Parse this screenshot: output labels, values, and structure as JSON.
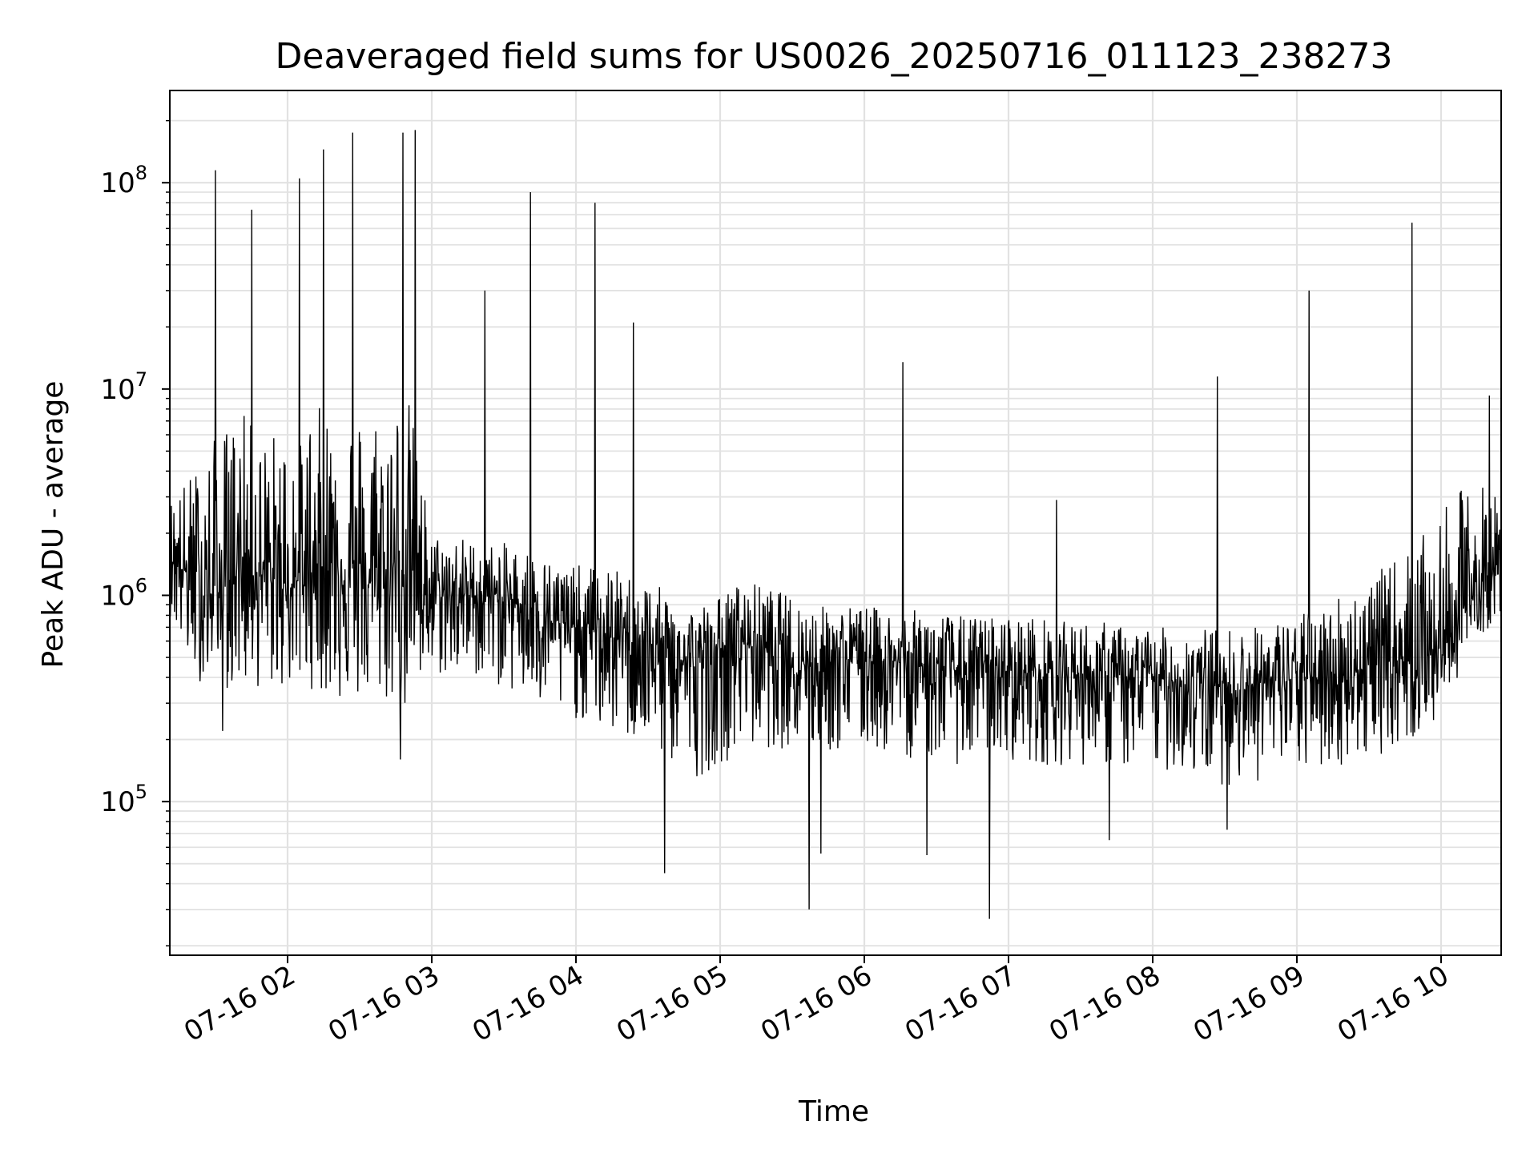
{
  "chart_data": {
    "type": "line",
    "title": "Deaveraged field sums for US0026_20250716_011123_238273",
    "xlabel": "Time",
    "ylabel": "Peak ADU - average",
    "y_scale": "log",
    "ylim": [
      18000,
      280000000
    ],
    "xlim": [
      "2025-07-16 01:11",
      "2025-07-16 10:25"
    ],
    "grid": true,
    "x_tick_labels": [
      "07-16 02",
      "07-16 03",
      "07-16 04",
      "07-16 05",
      "07-16 06",
      "07-16 07",
      "07-16 08",
      "07-16 09",
      "07-16 10"
    ],
    "x_ticks": [
      "2025-07-16 02:00",
      "2025-07-16 03:00",
      "2025-07-16 04:00",
      "2025-07-16 05:00",
      "2025-07-16 06:00",
      "2025-07-16 07:00",
      "2025-07-16 08:00",
      "2025-07-16 09:00",
      "2025-07-16 10:00"
    ],
    "y_ticks": [
      100000,
      1000000,
      10000000,
      100000000
    ],
    "y_tick_labels": [
      {
        "base": "10",
        "exp": "5"
      },
      {
        "base": "10",
        "exp": "6"
      },
      {
        "base": "10",
        "exp": "7"
      },
      {
        "base": "10",
        "exp": "8"
      }
    ],
    "line_color": "#000000",
    "series": [
      {
        "x": [
          "2025-07-16 01:11",
          "2025-07-16 01:20",
          "2025-07-16 01:30",
          "2025-07-16 01:40",
          "2025-07-16 01:50",
          "2025-07-16 02:00",
          "2025-07-16 02:10",
          "2025-07-16 02:20",
          "2025-07-16 02:30",
          "2025-07-16 02:40",
          "2025-07-16 02:50",
          "2025-07-16 03:00",
          "2025-07-16 03:10",
          "2025-07-16 03:20",
          "2025-07-16 03:30",
          "2025-07-16 03:40",
          "2025-07-16 03:50",
          "2025-07-16 04:00",
          "2025-07-16 04:10",
          "2025-07-16 04:20",
          "2025-07-16 04:30",
          "2025-07-16 04:40",
          "2025-07-16 04:50",
          "2025-07-16 05:00",
          "2025-07-16 05:10",
          "2025-07-16 05:20",
          "2025-07-16 05:30",
          "2025-07-16 05:40",
          "2025-07-16 05:50",
          "2025-07-16 06:00",
          "2025-07-16 06:10",
          "2025-07-16 06:20",
          "2025-07-16 06:30",
          "2025-07-16 06:40",
          "2025-07-16 06:50",
          "2025-07-16 07:00",
          "2025-07-16 07:10",
          "2025-07-16 07:20",
          "2025-07-16 07:30",
          "2025-07-16 07:40",
          "2025-07-16 07:50",
          "2025-07-16 08:00",
          "2025-07-16 08:10",
          "2025-07-16 08:20",
          "2025-07-16 08:30",
          "2025-07-16 08:40",
          "2025-07-16 08:50",
          "2025-07-16 09:00",
          "2025-07-16 09:10",
          "2025-07-16 09:20",
          "2025-07-16 09:30",
          "2025-07-16 09:40",
          "2025-07-16 09:50",
          "2025-07-16 10:00",
          "2025-07-16 10:10",
          "2025-07-16 10:20",
          "2025-07-16 10:25"
        ],
        "y": [
          1600000,
          1200000,
          900000,
          1500000,
          1200000,
          1100000,
          1300000,
          1500000,
          1100000,
          1200000,
          1400000,
          1000000,
          1000000,
          1000000,
          950000,
          900000,
          750000,
          700000,
          650000,
          600000,
          550000,
          500000,
          450000,
          550000,
          600000,
          550000,
          500000,
          480000,
          500000,
          500000,
          480000,
          460000,
          450000,
          430000,
          420000,
          430000,
          420000,
          410000,
          420000,
          400000,
          390000,
          400000,
          380000,
          370000,
          360000,
          370000,
          380000,
          390000,
          400000,
          420000,
          450000,
          480000,
          500000,
          550000,
          900000,
          1200000,
          1300000
        ],
        "noise_low": [
          800000,
          400000,
          350000,
          350000,
          350000,
          350000,
          350000,
          300000,
          300000,
          300000,
          250000,
          400000,
          400000,
          400000,
          350000,
          300000,
          250000,
          250000,
          220000,
          200000,
          180000,
          150000,
          130000,
          150000,
          180000,
          180000,
          180000,
          170000,
          170000,
          180000,
          170000,
          160000,
          160000,
          150000,
          150000,
          160000,
          150000,
          150000,
          150000,
          150000,
          140000,
          140000,
          140000,
          130000,
          120000,
          120000,
          130000,
          140000,
          140000,
          150000,
          160000,
          180000,
          200000,
          250000,
          500000,
          700000,
          800000
        ],
        "noise_high": [
          3000000,
          4000000,
          6000000,
          8000000,
          6000000,
          7000000,
          8000000,
          9000000,
          8000000,
          9000000,
          10000000,
          2000000,
          2000000,
          1800000,
          1800000,
          1700000,
          1500000,
          1400000,
          1400000,
          1300000,
          1200000,
          1000000,
          900000,
          1000000,
          1200000,
          1100000,
          1000000,
          900000,
          900000,
          900000,
          850000,
          850000,
          850000,
          800000,
          800000,
          800000,
          800000,
          750000,
          750000,
          750000,
          700000,
          700000,
          700000,
          700000,
          700000,
          700000,
          750000,
          800000,
          900000,
          1100000,
          1200000,
          1500000,
          1800000,
          2500000,
          3500000,
          3500000,
          3000000
        ],
        "spikes": [
          {
            "x": "2025-07-16 01:30",
            "y": 115000000
          },
          {
            "x": "2025-07-16 01:45",
            "y": 74000000
          },
          {
            "x": "2025-07-16 02:05",
            "y": 105000000
          },
          {
            "x": "2025-07-16 02:15",
            "y": 145000000
          },
          {
            "x": "2025-07-16 02:27",
            "y": 175000000
          },
          {
            "x": "2025-07-16 02:48",
            "y": 175000000
          },
          {
            "x": "2025-07-16 02:53",
            "y": 180000000
          },
          {
            "x": "2025-07-16 03:22",
            "y": 30000000
          },
          {
            "x": "2025-07-16 03:41",
            "y": 90000000
          },
          {
            "x": "2025-07-16 04:08",
            "y": 80000000
          },
          {
            "x": "2025-07-16 04:24",
            "y": 21000000
          },
          {
            "x": "2025-07-16 06:16",
            "y": 13500000
          },
          {
            "x": "2025-07-16 07:20",
            "y": 2900000
          },
          {
            "x": "2025-07-16 08:27",
            "y": 11500000
          },
          {
            "x": "2025-07-16 09:05",
            "y": 30000000
          },
          {
            "x": "2025-07-16 09:48",
            "y": 64000000
          },
          {
            "x": "2025-07-16 10:20",
            "y": 9300000
          }
        ],
        "dips": [
          {
            "x": "2025-07-16 01:33",
            "y": 220000
          },
          {
            "x": "2025-07-16 02:47",
            "y": 160000
          },
          {
            "x": "2025-07-16 04:37",
            "y": 45000
          },
          {
            "x": "2025-07-16 05:37",
            "y": 30000
          },
          {
            "x": "2025-07-16 05:42",
            "y": 56000
          },
          {
            "x": "2025-07-16 06:26",
            "y": 55000
          },
          {
            "x": "2025-07-16 06:52",
            "y": 27000
          },
          {
            "x": "2025-07-16 07:42",
            "y": 65000
          },
          {
            "x": "2025-07-16 08:31",
            "y": 73000
          }
        ]
      }
    ]
  }
}
